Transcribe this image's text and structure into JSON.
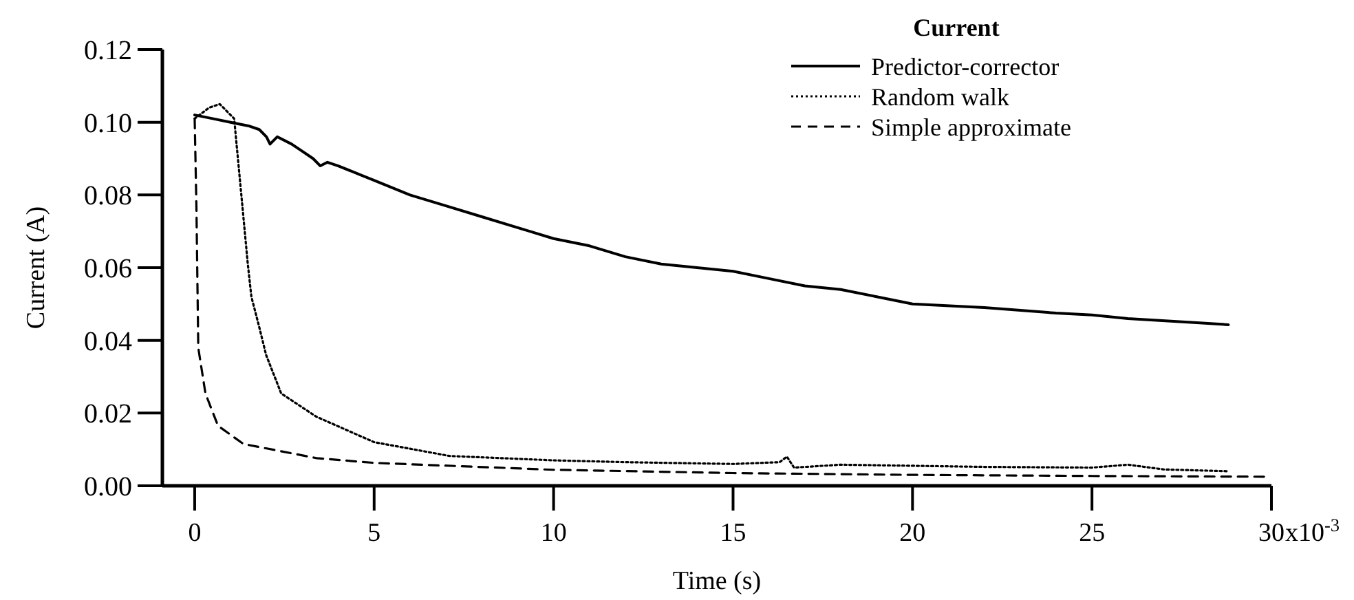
{
  "chart_data": {
    "type": "line",
    "xlabel": "Time (s)",
    "ylabel": "Current (A)",
    "legend_title": "Current",
    "legend": "top right",
    "grid": false,
    "xlim": [
      -0.9,
      30
    ],
    "xticks": [
      0,
      5,
      10,
      15,
      20,
      25,
      30
    ],
    "annotations": [
      "x10$^{-3}$"
    ],
    "ylim": [
      0,
      0.12
    ],
    "yticks": [
      {
        "value": 0,
        "label": "0.00"
      },
      {
        "value": 0.02,
        "label": "0.02"
      },
      {
        "value": 0.04,
        "label": "0.04"
      },
      {
        "value": 0.06,
        "label": "0.06"
      },
      {
        "value": 0.08,
        "label": "0.08"
      },
      {
        "value": 0.1,
        "label": "0.10"
      },
      {
        "value": 0.12,
        "label": "0.12"
      }
    ],
    "series": [
      {
        "name": "Predictor-corrector",
        "color": "#000000",
        "line_style": "solid",
        "x": [
          0,
          0.5,
          1,
          1.5,
          1.8,
          2,
          2.1,
          2.3,
          2.7,
          3,
          3.3,
          3.5,
          3.7,
          4,
          5,
          6,
          7,
          8,
          9,
          10,
          11,
          12,
          13,
          14,
          15,
          16,
          17,
          18,
          19,
          20,
          22,
          24,
          25,
          26,
          28,
          28.8
        ],
        "values": [
          0.102,
          0.101,
          0.1,
          0.099,
          0.098,
          0.096,
          0.094,
          0.096,
          0.094,
          0.092,
          0.09,
          0.088,
          0.089,
          0.088,
          0.084,
          0.08,
          0.077,
          0.074,
          0.071,
          0.068,
          0.066,
          0.063,
          0.061,
          0.06,
          0.059,
          0.057,
          0.055,
          0.054,
          0.052,
          0.05,
          0.049,
          0.0475,
          0.047,
          0.046,
          0.0448,
          0.0443
        ]
      },
      {
        "name": "Random walk",
        "color": "#000000",
        "line_style": "dotted",
        "x": [
          0,
          0.4,
          0.7,
          1.1,
          1.3,
          1.48,
          1.58,
          1.79,
          1.99,
          2.41,
          3.39,
          5,
          7.1,
          10,
          12,
          15,
          16.3,
          16.5,
          16.7,
          18,
          20,
          22,
          25,
          26,
          27,
          28.8
        ],
        "values": [
          0.101,
          0.104,
          0.105,
          0.101,
          0.08,
          0.061,
          0.052,
          0.044,
          0.036,
          0.0254,
          0.019,
          0.012,
          0.0082,
          0.007,
          0.0065,
          0.006,
          0.0065,
          0.008,
          0.005,
          0.0058,
          0.0055,
          0.0052,
          0.005,
          0.0058,
          0.0045,
          0.004
        ]
      },
      {
        "name": "Simple approximate",
        "color": "#000000",
        "line_style": "dashed",
        "x": [
          0,
          0.05,
          0.1,
          0.3,
          0.65,
          1.36,
          3.4,
          5,
          10,
          15,
          20,
          25,
          29.8
        ],
        "values": [
          0.101,
          0.076,
          0.038,
          0.0254,
          0.0165,
          0.0115,
          0.0076,
          0.0063,
          0.0044,
          0.0035,
          0.003,
          0.0027,
          0.0025
        ]
      }
    ]
  }
}
